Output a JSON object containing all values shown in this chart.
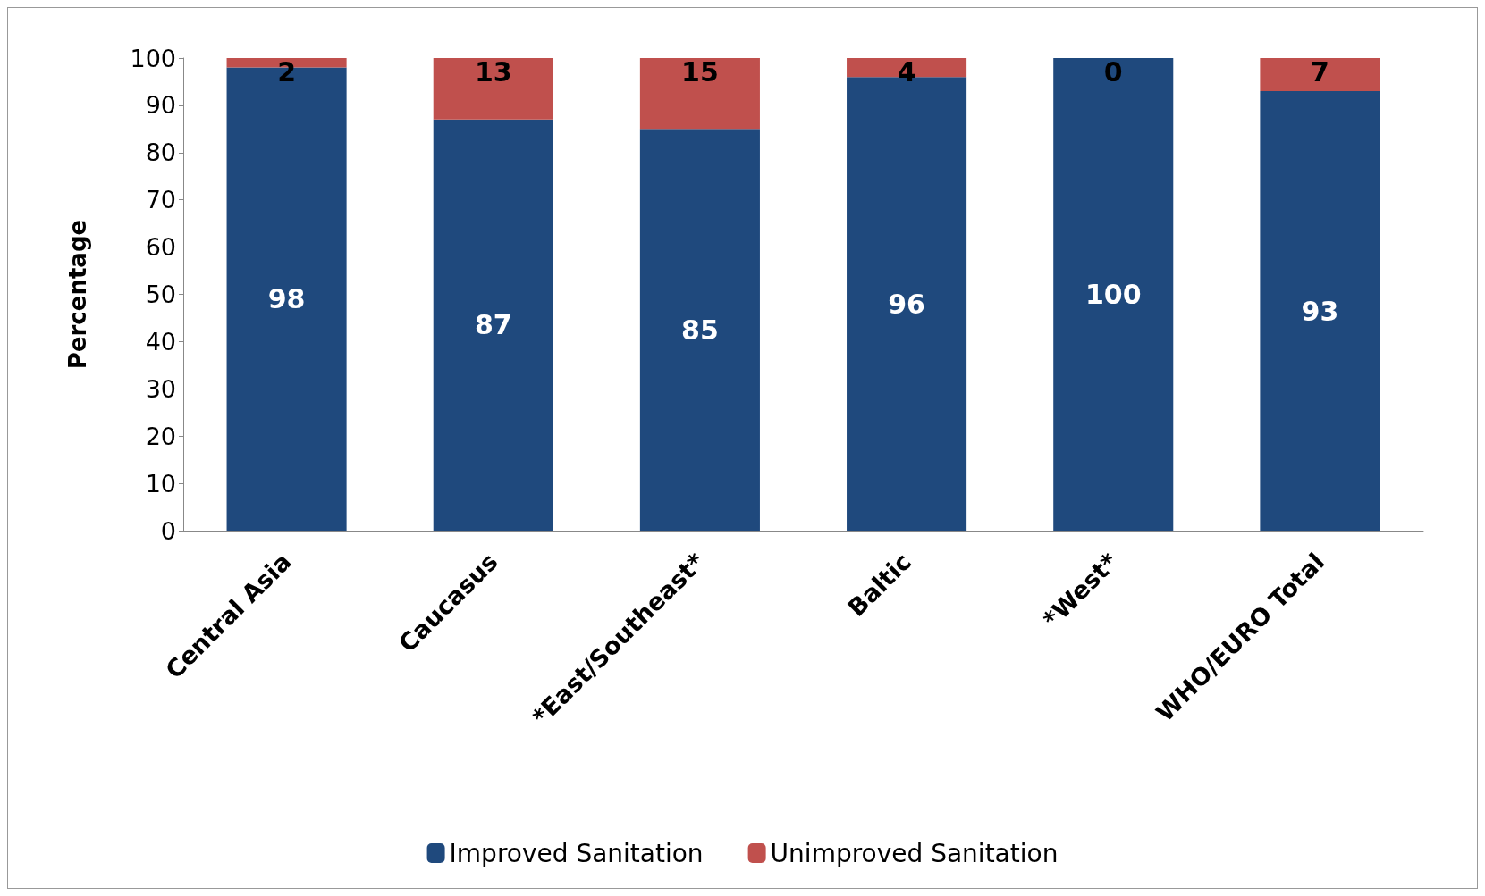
{
  "chart_data": {
    "type": "bar",
    "stacked": true,
    "ylabel": "Percentage",
    "categories": [
      "Central Asia",
      "Caucasus",
      "*East/Southeast*",
      "Baltic",
      "*West*",
      "WHO/EURO Total"
    ],
    "series": [
      {
        "name": "Improved Sanitation",
        "color": "#1f497d",
        "values": [
          98,
          87,
          85,
          96,
          100,
          93
        ]
      },
      {
        "name": "Unimproved Sanitation",
        "color": "#c0504d",
        "values": [
          2,
          13,
          15,
          4,
          0,
          7
        ]
      }
    ],
    "ylim": [
      0,
      100
    ],
    "yticks": [
      0,
      10,
      20,
      30,
      40,
      50,
      60,
      70,
      80,
      90,
      100
    ],
    "grid": false,
    "legend": "bottom",
    "data_labels": true
  }
}
